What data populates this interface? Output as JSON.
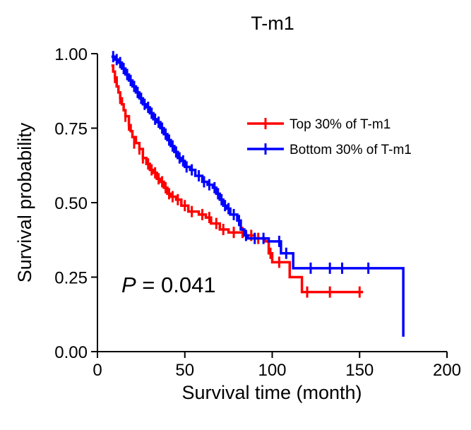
{
  "chart_data": {
    "type": "line",
    "title": "T-m1",
    "xlabel": "Survival time (month)",
    "ylabel": "Survival probability",
    "xlim": [
      0,
      200
    ],
    "ylim": [
      0,
      1
    ],
    "xticks": [
      "0",
      "50",
      "100",
      "150",
      "200"
    ],
    "yticks": [
      "0.00",
      "0.25",
      "0.50",
      "0.75",
      "1.00"
    ],
    "grid": false,
    "legend_position": "right",
    "annotation": {
      "italic": "P",
      "text": " = 0.041"
    },
    "series": [
      {
        "name": "Top 30% of T-m1",
        "color": "#ff0000",
        "steps": [
          [
            8,
            0.96
          ],
          [
            9,
            0.94
          ],
          [
            10,
            0.92
          ],
          [
            11,
            0.89
          ],
          [
            12,
            0.87
          ],
          [
            13,
            0.85
          ],
          [
            14,
            0.83
          ],
          [
            15,
            0.81
          ],
          [
            16,
            0.79
          ],
          [
            18,
            0.76
          ],
          [
            19,
            0.74
          ],
          [
            20,
            0.72
          ],
          [
            22,
            0.7
          ],
          [
            24,
            0.68
          ],
          [
            26,
            0.65
          ],
          [
            28,
            0.63
          ],
          [
            30,
            0.61
          ],
          [
            32,
            0.6
          ],
          [
            34,
            0.58
          ],
          [
            36,
            0.57
          ],
          [
            38,
            0.55
          ],
          [
            40,
            0.53
          ],
          [
            42,
            0.52
          ],
          [
            45,
            0.51
          ],
          [
            48,
            0.49
          ],
          [
            52,
            0.47
          ],
          [
            58,
            0.46
          ],
          [
            62,
            0.45
          ],
          [
            65,
            0.43
          ],
          [
            70,
            0.41
          ],
          [
            75,
            0.4
          ],
          [
            85,
            0.39
          ],
          [
            90,
            0.38
          ],
          [
            96,
            0.37
          ],
          [
            98,
            0.33
          ],
          [
            100,
            0.3
          ],
          [
            110,
            0.25
          ],
          [
            117,
            0.2
          ],
          [
            152,
            0.2
          ]
        ],
        "censor": [
          [
            10,
            0.92
          ],
          [
            13,
            0.85
          ],
          [
            16,
            0.79
          ],
          [
            18,
            0.76
          ],
          [
            21,
            0.7
          ],
          [
            24,
            0.68
          ],
          [
            26,
            0.65
          ],
          [
            29,
            0.63
          ],
          [
            31,
            0.61
          ],
          [
            33,
            0.6
          ],
          [
            35,
            0.58
          ],
          [
            37,
            0.57
          ],
          [
            39,
            0.55
          ],
          [
            41,
            0.53
          ],
          [
            43,
            0.52
          ],
          [
            46,
            0.51
          ],
          [
            50,
            0.49
          ],
          [
            54,
            0.47
          ],
          [
            60,
            0.46
          ],
          [
            64,
            0.45
          ],
          [
            68,
            0.43
          ],
          [
            72,
            0.41
          ],
          [
            78,
            0.4
          ],
          [
            83,
            0.4
          ],
          [
            88,
            0.39
          ],
          [
            92,
            0.38
          ],
          [
            99,
            0.33
          ],
          [
            104,
            0.3
          ],
          [
            120,
            0.2
          ],
          [
            133,
            0.2
          ],
          [
            150,
            0.2
          ]
        ]
      },
      {
        "name": "Bottom 30% of T-m1",
        "color": "#0000ff",
        "steps": [
          [
            8,
            0.99
          ],
          [
            10,
            0.98
          ],
          [
            12,
            0.97
          ],
          [
            14,
            0.95
          ],
          [
            16,
            0.93
          ],
          [
            18,
            0.91
          ],
          [
            20,
            0.89
          ],
          [
            22,
            0.87
          ],
          [
            24,
            0.85
          ],
          [
            26,
            0.83
          ],
          [
            28,
            0.82
          ],
          [
            30,
            0.8
          ],
          [
            32,
            0.78
          ],
          [
            34,
            0.77
          ],
          [
            36,
            0.75
          ],
          [
            38,
            0.73
          ],
          [
            40,
            0.71
          ],
          [
            42,
            0.69
          ],
          [
            44,
            0.67
          ],
          [
            46,
            0.65
          ],
          [
            48,
            0.64
          ],
          [
            50,
            0.62
          ],
          [
            53,
            0.61
          ],
          [
            56,
            0.59
          ],
          [
            60,
            0.57
          ],
          [
            63,
            0.56
          ],
          [
            66,
            0.55
          ],
          [
            68,
            0.53
          ],
          [
            70,
            0.51
          ],
          [
            72,
            0.49
          ],
          [
            74,
            0.48
          ],
          [
            76,
            0.46
          ],
          [
            80,
            0.44
          ],
          [
            82,
            0.41
          ],
          [
            84,
            0.39
          ],
          [
            86,
            0.38
          ],
          [
            98,
            0.37
          ],
          [
            105,
            0.33
          ],
          [
            112,
            0.28
          ],
          [
            175,
            0.28
          ],
          [
            175,
            0.05
          ]
        ],
        "censor": [
          [
            9,
            0.99
          ],
          [
            11,
            0.98
          ],
          [
            13,
            0.97
          ],
          [
            15,
            0.95
          ],
          [
            17,
            0.93
          ],
          [
            19,
            0.91
          ],
          [
            21,
            0.89
          ],
          [
            23,
            0.87
          ],
          [
            25,
            0.85
          ],
          [
            27,
            0.83
          ],
          [
            29,
            0.82
          ],
          [
            31,
            0.8
          ],
          [
            33,
            0.78
          ],
          [
            35,
            0.77
          ],
          [
            37,
            0.75
          ],
          [
            39,
            0.73
          ],
          [
            41,
            0.71
          ],
          [
            43,
            0.69
          ],
          [
            45,
            0.67
          ],
          [
            47,
            0.65
          ],
          [
            49,
            0.64
          ],
          [
            51,
            0.62
          ],
          [
            54,
            0.61
          ],
          [
            58,
            0.59
          ],
          [
            61,
            0.57
          ],
          [
            64,
            0.56
          ],
          [
            67,
            0.55
          ],
          [
            69,
            0.53
          ],
          [
            71,
            0.51
          ],
          [
            73,
            0.49
          ],
          [
            75,
            0.48
          ],
          [
            78,
            0.46
          ],
          [
            81,
            0.44
          ],
          [
            85,
            0.39
          ],
          [
            90,
            0.38
          ],
          [
            95,
            0.38
          ],
          [
            104,
            0.37
          ],
          [
            108,
            0.33
          ],
          [
            122,
            0.28
          ],
          [
            133,
            0.28
          ],
          [
            140,
            0.28
          ],
          [
            155,
            0.28
          ]
        ]
      }
    ]
  }
}
